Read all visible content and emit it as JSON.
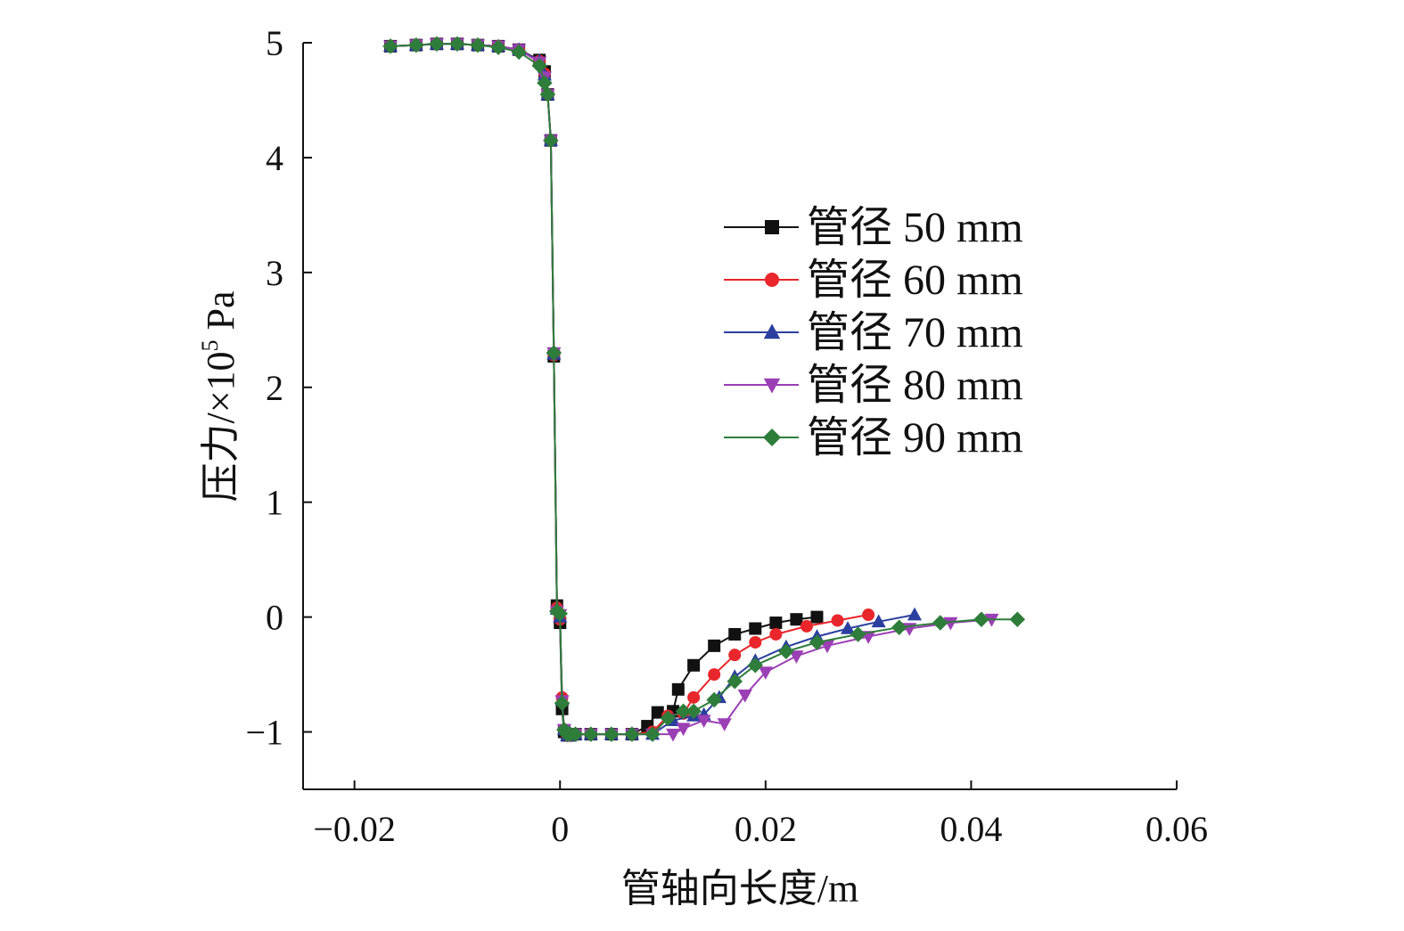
{
  "chart_data": {
    "type": "line",
    "title": "",
    "xlabel": "管轴向长度/m",
    "ylabel": "压力/×10",
    "ylabel_superscript": "5",
    "ylabel_unit": " Pa",
    "xlim": [
      -0.025,
      0.06
    ],
    "ylim": [
      -1.5,
      5
    ],
    "xticks": [
      -0.02,
      0,
      0.02,
      0.04,
      0.06
    ],
    "xtick_labels": [
      "−0.02",
      "0",
      "0.02",
      "0.04",
      "0.06"
    ],
    "yticks": [
      -1,
      0,
      1,
      2,
      3,
      4,
      5
    ],
    "ytick_labels": [
      "−1",
      "0",
      "1",
      "2",
      "3",
      "4",
      "5"
    ],
    "grid": false,
    "legend_position": "right",
    "series": [
      {
        "name": "管径 50 mm",
        "color": "#111111",
        "marker": "square",
        "x": [
          -0.0165,
          -0.014,
          -0.012,
          -0.01,
          -0.008,
          -0.006,
          -0.004,
          -0.002,
          -0.0015,
          -0.0012,
          -0.0009,
          -0.0006,
          -0.0003,
          0.0,
          0.0002,
          0.0004,
          0.0007,
          0.001,
          0.0015,
          0.003,
          0.005,
          0.007,
          0.0085,
          0.0095,
          0.011,
          0.0115,
          0.013,
          0.015,
          0.017,
          0.019,
          0.021,
          0.023,
          0.025
        ],
        "y": [
          4.97,
          4.98,
          4.99,
          4.99,
          4.98,
          4.97,
          4.94,
          4.85,
          4.75,
          4.55,
          4.15,
          2.27,
          0.1,
          -0.05,
          -0.8,
          -1.0,
          -1.03,
          -1.03,
          -1.02,
          -1.02,
          -1.02,
          -1.02,
          -0.95,
          -0.83,
          -0.82,
          -0.63,
          -0.42,
          -0.25,
          -0.15,
          -0.1,
          -0.05,
          -0.02,
          0.0
        ]
      },
      {
        "name": "管径 60 mm",
        "color": "#e8262b",
        "marker": "circle",
        "x": [
          -0.0165,
          -0.014,
          -0.012,
          -0.01,
          -0.008,
          -0.006,
          -0.004,
          -0.002,
          -0.0015,
          -0.0012,
          -0.0009,
          -0.0006,
          -0.0003,
          0.0,
          0.0002,
          0.0004,
          0.0007,
          0.001,
          0.0015,
          0.003,
          0.005,
          0.007,
          0.009,
          0.0105,
          0.012,
          0.013,
          0.015,
          0.017,
          0.019,
          0.021,
          0.024,
          0.027,
          0.03
        ],
        "y": [
          4.97,
          4.98,
          4.99,
          4.99,
          4.98,
          4.97,
          4.94,
          4.84,
          4.73,
          4.55,
          4.15,
          2.28,
          0.08,
          -0.02,
          -0.7,
          -0.98,
          -1.03,
          -1.03,
          -1.02,
          -1.02,
          -1.02,
          -1.02,
          -1.0,
          -0.86,
          -0.84,
          -0.7,
          -0.5,
          -0.33,
          -0.22,
          -0.15,
          -0.08,
          -0.03,
          0.02
        ]
      },
      {
        "name": "管径 70 mm",
        "color": "#2a3f9e",
        "marker": "triangle-up",
        "x": [
          -0.0165,
          -0.014,
          -0.012,
          -0.01,
          -0.008,
          -0.006,
          -0.004,
          -0.002,
          -0.0015,
          -0.0012,
          -0.0009,
          -0.0006,
          -0.0003,
          0.0,
          0.0002,
          0.0004,
          0.0007,
          0.001,
          0.0015,
          0.003,
          0.005,
          0.007,
          0.009,
          0.011,
          0.013,
          0.014,
          0.0155,
          0.017,
          0.019,
          0.022,
          0.025,
          0.028,
          0.031,
          0.0345
        ],
        "y": [
          4.97,
          4.98,
          4.99,
          4.99,
          4.98,
          4.97,
          4.94,
          4.84,
          4.72,
          4.55,
          4.15,
          2.29,
          0.07,
          0.0,
          -0.72,
          -0.98,
          -1.03,
          -1.03,
          -1.02,
          -1.02,
          -1.02,
          -1.02,
          -1.02,
          -0.9,
          -0.86,
          -0.85,
          -0.7,
          -0.52,
          -0.38,
          -0.26,
          -0.17,
          -0.1,
          -0.04,
          0.02
        ]
      },
      {
        "name": "管径 80 mm",
        "color": "#9b3fb5",
        "marker": "triangle-down",
        "x": [
          -0.0165,
          -0.014,
          -0.012,
          -0.01,
          -0.008,
          -0.006,
          -0.004,
          -0.002,
          -0.0015,
          -0.0012,
          -0.0009,
          -0.0006,
          -0.0003,
          0.0,
          0.0002,
          0.0004,
          0.0007,
          0.001,
          0.0015,
          0.003,
          0.005,
          0.007,
          0.009,
          0.011,
          0.012,
          0.014,
          0.016,
          0.018,
          0.02,
          0.023,
          0.026,
          0.03,
          0.034,
          0.038,
          0.042
        ],
        "y": [
          4.97,
          4.98,
          4.99,
          4.99,
          4.98,
          4.97,
          4.94,
          4.83,
          4.7,
          4.55,
          4.15,
          2.3,
          0.05,
          0.02,
          -0.73,
          -0.98,
          -1.03,
          -1.03,
          -1.02,
          -1.02,
          -1.02,
          -1.02,
          -1.02,
          -1.02,
          -0.97,
          -0.9,
          -0.93,
          -0.68,
          -0.48,
          -0.34,
          -0.25,
          -0.17,
          -0.1,
          -0.05,
          -0.02
        ]
      },
      {
        "name": "管径 90 mm",
        "color": "#2e7d3a",
        "marker": "diamond",
        "x": [
          -0.0165,
          -0.014,
          -0.012,
          -0.01,
          -0.008,
          -0.006,
          -0.004,
          -0.002,
          -0.0015,
          -0.0012,
          -0.0009,
          -0.0006,
          -0.0003,
          0.0,
          0.0002,
          0.0004,
          0.0007,
          0.001,
          0.0015,
          0.003,
          0.005,
          0.007,
          0.009,
          0.0105,
          0.012,
          0.013,
          0.015,
          0.017,
          0.019,
          0.022,
          0.025,
          0.029,
          0.033,
          0.037,
          0.041,
          0.0445
        ],
        "y": [
          4.97,
          4.98,
          4.99,
          4.99,
          4.98,
          4.96,
          4.92,
          4.8,
          4.65,
          4.55,
          4.15,
          2.3,
          0.05,
          0.03,
          -0.75,
          -0.98,
          -1.02,
          -1.02,
          -1.02,
          -1.02,
          -1.02,
          -1.02,
          -1.02,
          -0.88,
          -0.82,
          -0.82,
          -0.72,
          -0.56,
          -0.42,
          -0.3,
          -0.22,
          -0.15,
          -0.09,
          -0.05,
          -0.02,
          -0.02
        ]
      }
    ]
  }
}
